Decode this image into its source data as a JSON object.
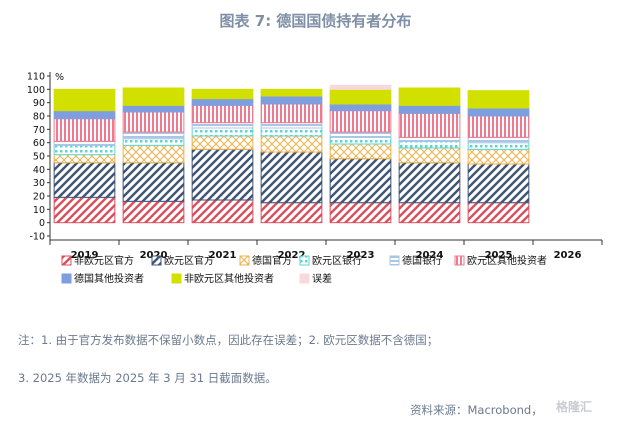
{
  "title": "图表 7:  德国国债持有者分布",
  "notes": {
    "line1": "注：1. 由于官方发布数据不保留小数点，因此存在误差；2. 欧元区数据不含德国；",
    "line2": "3. 2025 年数据为 2025 年 3 月 31 日截面数据。"
  },
  "source": "资料来源：Macrobond，",
  "watermark": "格隆汇",
  "chart_data": {
    "type": "bar",
    "stacked": true,
    "unit_label": "%",
    "categories": [
      "2019",
      "2020",
      "2021",
      "2022",
      "2023",
      "2024",
      "2025",
      "2026"
    ],
    "ylim": [
      -10,
      110
    ],
    "yticks": [
      -10,
      0,
      10,
      20,
      30,
      40,
      50,
      60,
      70,
      80,
      90,
      100,
      110
    ],
    "series": [
      {
        "name": "非欧元区官方",
        "color": "#d9505e",
        "pattern": "diag-fwd",
        "values": [
          19,
          16,
          17,
          15,
          15,
          15,
          15,
          null
        ]
      },
      {
        "name": "欧元区官方",
        "color": "#3f5577",
        "pattern": "diag-fwd",
        "values": [
          26,
          29,
          38,
          38,
          33,
          30,
          29,
          null
        ]
      },
      {
        "name": "德国官方",
        "color": "#f0b048",
        "pattern": "cross",
        "values": [
          6,
          13,
          10,
          12,
          11,
          11,
          11,
          null
        ]
      },
      {
        "name": "欧元区银行",
        "color": "#5ed6d0",
        "pattern": "dots",
        "values": [
          7,
          5,
          6,
          6,
          5,
          5,
          5,
          null
        ]
      },
      {
        "name": "德国银行",
        "color": "#a9c6e8",
        "pattern": "hstripe",
        "values": [
          3,
          5,
          4,
          4,
          4,
          3,
          4,
          null
        ]
      },
      {
        "name": "欧元区其他投资者",
        "color": "#ef7a8e",
        "pattern": "vstripe",
        "values": [
          17,
          15,
          13,
          14,
          16,
          18,
          16,
          null
        ]
      },
      {
        "name": "德国其他投资者",
        "color": "#7f9ee0",
        "pattern": "solid",
        "values": [
          6,
          5,
          5,
          6,
          5,
          6,
          6,
          null
        ]
      },
      {
        "name": "非欧元区其他投资者",
        "color": "#d2e000",
        "pattern": "solid",
        "values": [
          16,
          13,
          7,
          5,
          11,
          13,
          13,
          null
        ]
      },
      {
        "name": "误差",
        "color": "#f7d9de",
        "pattern": "solid",
        "values": [
          0,
          0,
          0,
          0,
          3,
          0,
          0,
          null
        ]
      }
    ]
  }
}
